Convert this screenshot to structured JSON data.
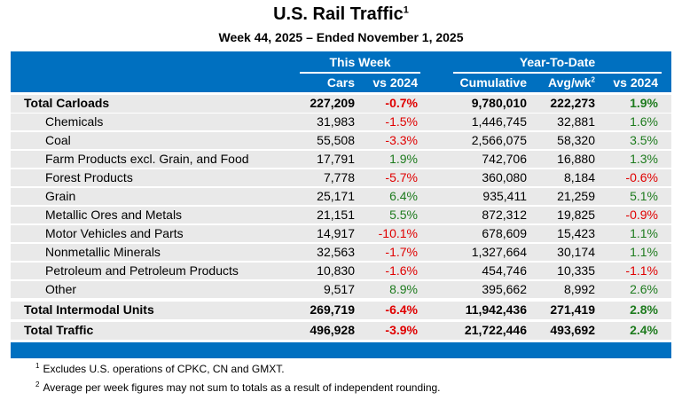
{
  "title": "U.S. Rail Traffic",
  "title_footnote": "1",
  "subtitle": "Week 44, 2025 – Ended November 1, 2025",
  "header": {
    "this_week": "This Week",
    "ytd": "Year-To-Date",
    "cars": "Cars",
    "vs1": "vs 2024",
    "cumulative": "Cumulative",
    "avg": "Avg/wk",
    "avg_footnote": "2",
    "vs2": "vs 2024"
  },
  "colors": {
    "header_bg": "#0070c0",
    "row_bg": "#e9e9e9",
    "negative": "#e00000",
    "positive": "#1e7b1e"
  },
  "rows": [
    {
      "label": "Total Carloads",
      "cars": "227,209",
      "vs1": "-0.7%",
      "cum": "9,780,010",
      "avg": "222,273",
      "vs2": "1.9%",
      "bold": true
    },
    {
      "label": "Chemicals",
      "cars": "31,983",
      "vs1": "-1.5%",
      "cum": "1,446,745",
      "avg": "32,881",
      "vs2": "1.6%"
    },
    {
      "label": "Coal",
      "cars": "55,508",
      "vs1": "-3.3%",
      "cum": "2,566,075",
      "avg": "58,320",
      "vs2": "3.5%"
    },
    {
      "label": "Farm Products excl. Grain, and Food",
      "cars": "17,791",
      "vs1": "1.9%",
      "cum": "742,706",
      "avg": "16,880",
      "vs2": "1.3%"
    },
    {
      "label": "Forest Products",
      "cars": "7,778",
      "vs1": "-5.7%",
      "cum": "360,080",
      "avg": "8,184",
      "vs2": "-0.6%"
    },
    {
      "label": "Grain",
      "cars": "25,171",
      "vs1": "6.4%",
      "cum": "935,411",
      "avg": "21,259",
      "vs2": "5.1%"
    },
    {
      "label": "Metallic Ores and Metals",
      "cars": "21,151",
      "vs1": "5.5%",
      "cum": "872,312",
      "avg": "19,825",
      "vs2": "-0.9%"
    },
    {
      "label": "Motor Vehicles and Parts",
      "cars": "14,917",
      "vs1": "-10.1%",
      "cum": "678,609",
      "avg": "15,423",
      "vs2": "1.1%"
    },
    {
      "label": "Nonmetallic Minerals",
      "cars": "32,563",
      "vs1": "-1.7%",
      "cum": "1,327,664",
      "avg": "30,174",
      "vs2": "1.1%"
    },
    {
      "label": "Petroleum and Petroleum Products",
      "cars": "10,830",
      "vs1": "-1.6%",
      "cum": "454,746",
      "avg": "10,335",
      "vs2": "-1.1%"
    },
    {
      "label": "Other",
      "cars": "9,517",
      "vs1": "8.9%",
      "cum": "395,662",
      "avg": "8,992",
      "vs2": "2.6%"
    },
    {
      "label": "Total Intermodal Units",
      "cars": "269,719",
      "vs1": "-6.4%",
      "cum": "11,942,436",
      "avg": "271,419",
      "vs2": "2.8%",
      "bold": true
    },
    {
      "label": "Total Traffic",
      "cars": "496,928",
      "vs1": "-3.9%",
      "cum": "21,722,446",
      "avg": "493,692",
      "vs2": "2.4%",
      "bold": true
    }
  ],
  "footnotes": [
    {
      "mark": "1",
      "text": "Excludes U.S. operations of CPKC, CN and GMXT."
    },
    {
      "mark": "2",
      "text": "Average per week figures may not sum to totals as a result of independent rounding."
    }
  ]
}
